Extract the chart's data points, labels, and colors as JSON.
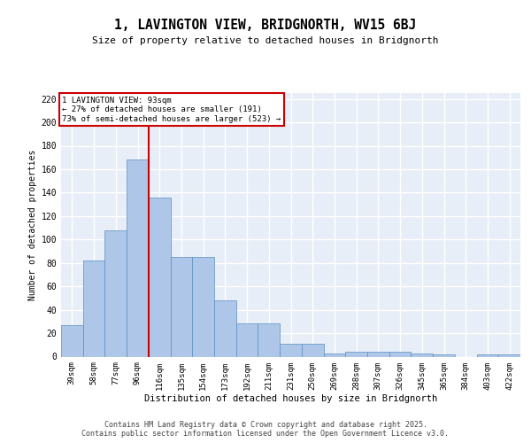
{
  "title": "1, LAVINGTON VIEW, BRIDGNORTH, WV15 6BJ",
  "subtitle": "Size of property relative to detached houses in Bridgnorth",
  "xlabel": "Distribution of detached houses by size in Bridgnorth",
  "ylabel": "Number of detached properties",
  "categories": [
    "39sqm",
    "58sqm",
    "77sqm",
    "96sqm",
    "116sqm",
    "135sqm",
    "154sqm",
    "173sqm",
    "192sqm",
    "211sqm",
    "231sqm",
    "250sqm",
    "269sqm",
    "288sqm",
    "307sqm",
    "326sqm",
    "345sqm",
    "365sqm",
    "384sqm",
    "403sqm",
    "422sqm"
  ],
  "values": [
    27,
    82,
    108,
    168,
    136,
    85,
    85,
    48,
    28,
    28,
    11,
    11,
    3,
    4,
    4,
    4,
    3,
    2,
    0,
    2,
    2
  ],
  "bar_color": "#aec6e8",
  "bar_edge_color": "#5a8fc0",
  "background_color": "#e8eef7",
  "grid_color": "#ffffff",
  "vline_x": 3.5,
  "vline_color": "#cc0000",
  "annotation_text": "1 LAVINGTON VIEW: 93sqm\n← 27% of detached houses are smaller (191)\n73% of semi-detached houses are larger (523) →",
  "annotation_box_edgecolor": "#cc0000",
  "ylim": [
    0,
    225
  ],
  "yticks": [
    0,
    20,
    40,
    60,
    80,
    100,
    120,
    140,
    160,
    180,
    200,
    220
  ],
  "footer_text": "Contains HM Land Registry data © Crown copyright and database right 2025.\nContains public sector information licensed under the Open Government Licence v3.0."
}
